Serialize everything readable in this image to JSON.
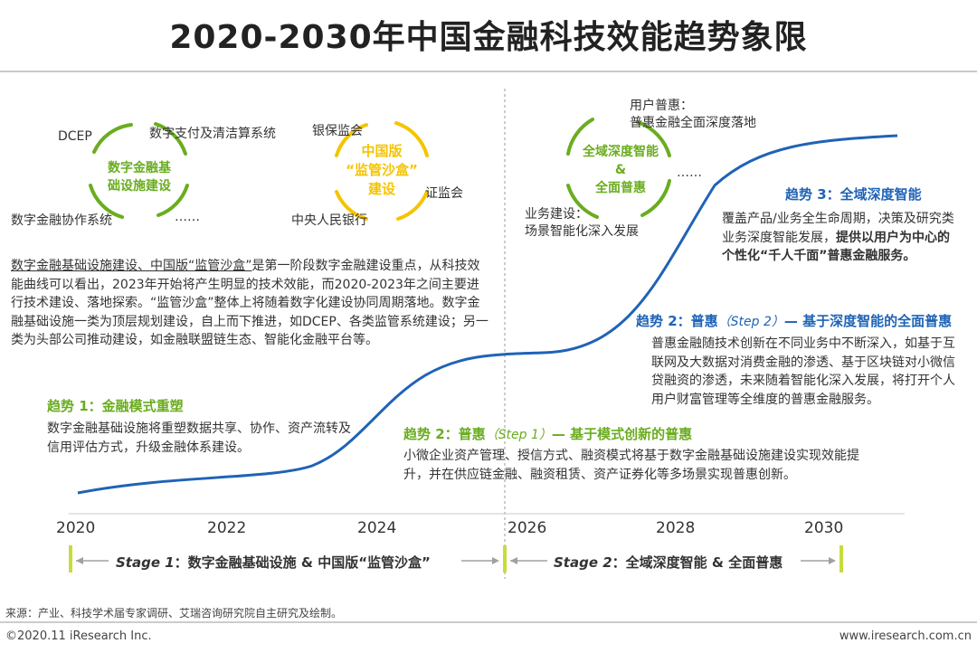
{
  "title": "2020-2030年中国金融科技效能趋势象限",
  "colors": {
    "green": "#6aad1f",
    "blue": "#1f63b6",
    "yellow": "#f5c400",
    "curve": "#1f63b6"
  },
  "left_cluster": {
    "circle_text": "数字金融基础设施建设",
    "circle_line1": "数字金融基",
    "circle_line2": "础设施建设",
    "labels": {
      "dcep": "DCEP",
      "payment": "数字支付及清洁算系统",
      "collab": "数字金融协作系统",
      "dots": "……"
    }
  },
  "sandbox_cluster": {
    "line1": "中国版",
    "line2": "“监管沙盒”",
    "line3": "建设",
    "labels": {
      "cbirc": "银保监会",
      "csrc": "证监会",
      "pboc": "中央人民银行"
    }
  },
  "stage1_paragraph": {
    "underlined": "数字金融基础设施建设、中国版“监管沙盒”",
    "rest": "是第一阶段数字金融建设重点，从科技效能曲线可以看出，2023年开始将产生明显的技术效能，而2020-2023年之间主要进行技术建设、落地探索。“监管沙盒”整体上将随着数字化建设协同周期落地。数字金融基础设施一类为顶层规划建设，自上而下推进，如DCEP、各类监管系统建设；另一类为头部公司推动建设，如金融联盟链生态、智能化金融平台等。"
  },
  "trend1": {
    "heading": "趋势 1：金融模式重塑",
    "body": "数字金融基础设施将重塑数据共享、协作、资产流转及信用评估方式，升级金融体系建设。"
  },
  "trend2a": {
    "prefix": "趋势 2：普惠",
    "step": "（Step 1）",
    "suffix": "— 基于模式创新的普惠",
    "body": "小微企业资产管理、授信方式、融资模式将基于数字金融基础设施建设实现效能提升，并在供应链金融、融资租赁、资产证券化等多场景实现普惠创新。"
  },
  "right_cluster": {
    "line1": "全域深度智能",
    "line2": "&",
    "line3": "全面普惠",
    "user_label1": "用户普惠：",
    "user_label2": "普惠金融全面深度落地",
    "biz_label1": "业务建设：",
    "biz_label2": "场景智能化深入发展",
    "dots": "……"
  },
  "trend3": {
    "heading": "趋势 3：全域深度智能",
    "body_plain": "覆盖产品/业务全生命周期，决策及研究类业务深度智能发展，",
    "body_bold": "提供以用户为中心的个性化“千人千面”普惠金融服务。"
  },
  "trend2b": {
    "prefix": "趋势 2：普惠",
    "step": "（Step 2）",
    "suffix": "— 基于深度智能的全面普惠",
    "body": "普惠金融随技术创新在不同业务中不断深入，如基于互联网及大数据对消费金融的渗透、基于区块链对小微信贷融资的渗透，未来随着智能化深入发展，将打开个人用户财富管理等全维度的普惠金融服务。"
  },
  "timeline": {
    "years": [
      "2020",
      "2022",
      "2024",
      "2026",
      "2028",
      "2030"
    ],
    "stage1_label": "Stage 1",
    "stage1_text": "：数字金融基础设施 & 中国版“监管沙盒”",
    "stage2_label": "Stage 2",
    "stage2_text": "：全域深度智能 & 全面普惠"
  },
  "footer": {
    "source": "来源：产业、科技学术届专家调研、艾瑞咨询研究院自主研究及绘制。",
    "copyright": "©2020.11 iResearch Inc.",
    "website": "www.iresearch.com.cn"
  }
}
